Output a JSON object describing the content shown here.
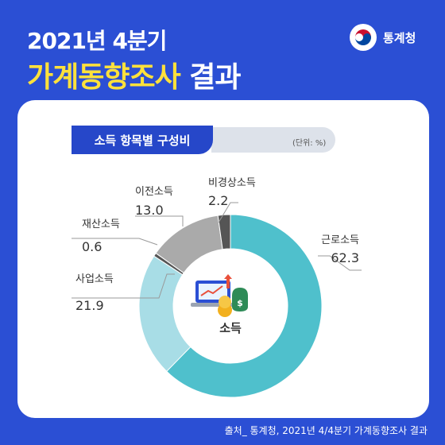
{
  "header": {
    "title_line1": "2021년 4분기",
    "title_line2_highlight": "가계동향조사",
    "title_line2_rest": "결과",
    "agency_name": "통계청"
  },
  "footer": {
    "source": "출처_ 통계청, 2021년 4/4분기 가계동향조사 결과"
  },
  "chart_data": {
    "type": "pie",
    "title": "소득 항목별 구성비",
    "unit": "(단위: %)",
    "center_label": "소득",
    "categories": [
      "근로소득",
      "사업소득",
      "재산소득",
      "이전소득",
      "비경상소득"
    ],
    "values": [
      62.3,
      21.9,
      0.6,
      13.0,
      2.2
    ],
    "value_labels": [
      "62.3",
      "21.9",
      "0.6",
      "13.0",
      "2.2"
    ],
    "colors": [
      "#4fc0cc",
      "#a8dde6",
      "#555555",
      "#aaaaaa",
      "#555555"
    ]
  }
}
